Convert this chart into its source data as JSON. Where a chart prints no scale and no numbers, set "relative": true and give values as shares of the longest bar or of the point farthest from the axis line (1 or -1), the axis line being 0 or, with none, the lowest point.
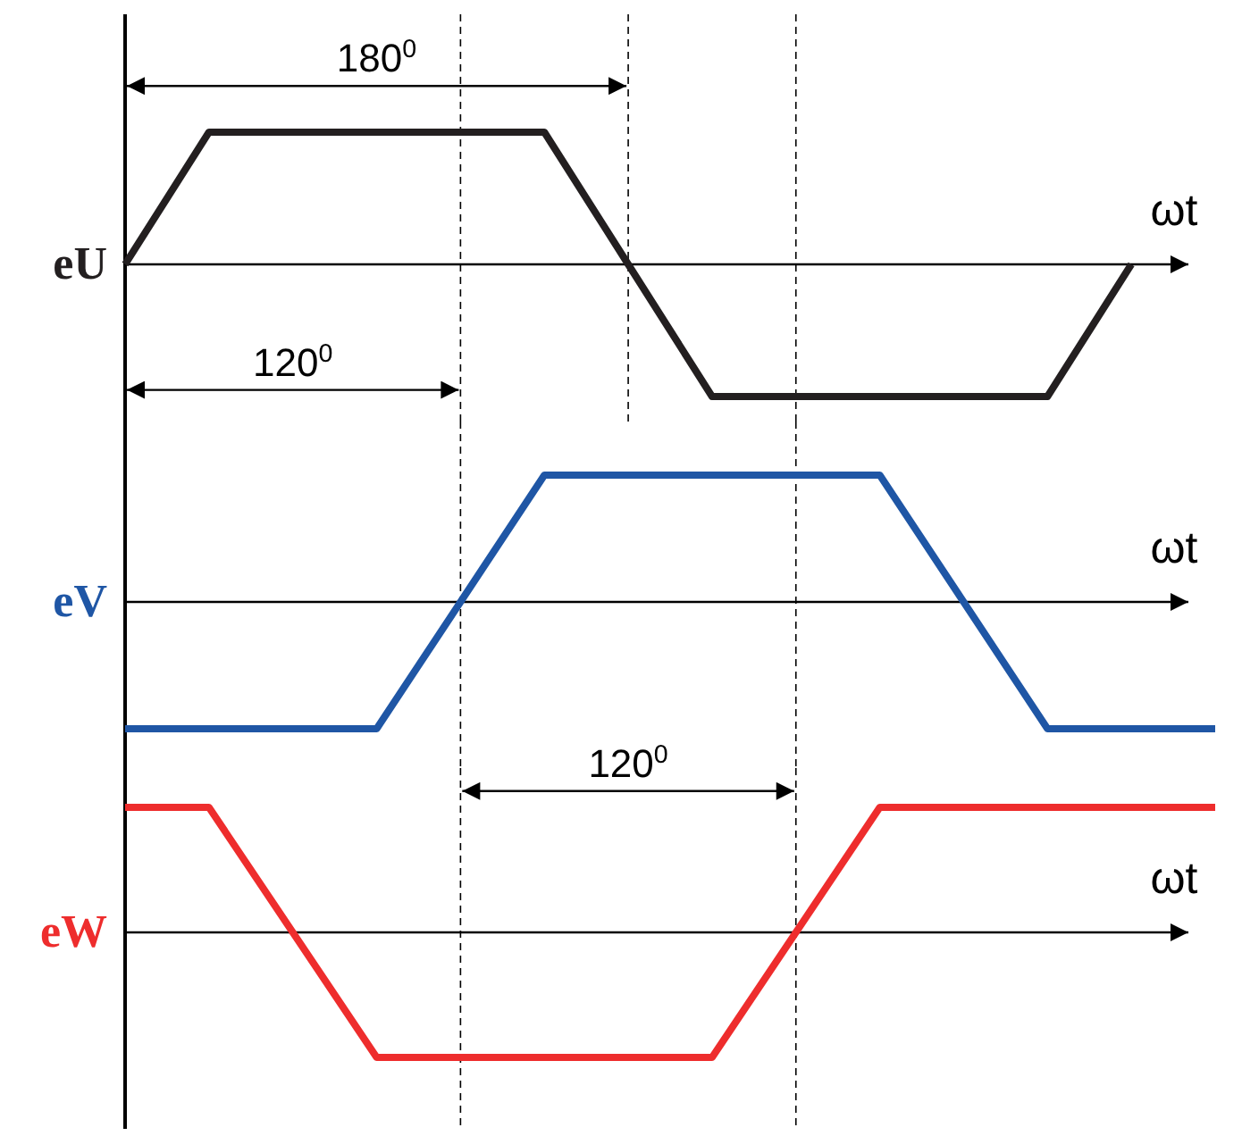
{
  "chart_data": [
    {
      "type": "line",
      "relative": true,
      "xlabel": "ωt",
      "ylabel": "eU",
      "line_style": "solid",
      "grid": "x",
      "annotations": [
        "180$^{0}$",
        "120$^{0}$"
      ],
      "categories": [
        null,
        null,
        null,
        null,
        null,
        null,
        null,
        null,
        null,
        null,
        null,
        null,
        null,
        null
      ],
      "series": [
        {
          "color": "#231f20",
          "values": [
            0,
            1,
            1,
            1,
            1,
            1,
            0,
            -1,
            -1,
            -1,
            -1,
            -1,
            0,
            null
          ]
        }
      ]
    },
    {
      "type": "line",
      "relative": true,
      "xlabel": "ωt",
      "ylabel": "eV",
      "line_style": "solid",
      "grid": "x",
      "categories": [
        null,
        null,
        null,
        null,
        null,
        null,
        null,
        null,
        null,
        null,
        null,
        null,
        null,
        null
      ],
      "series": [
        {
          "color": "#1f56a5",
          "values": [
            -1,
            -1,
            -1,
            -1,
            0,
            1,
            1,
            1,
            1,
            1,
            0,
            -1,
            -1,
            -1
          ]
        }
      ]
    },
    {
      "type": "line",
      "relative": true,
      "xlabel": "ωt",
      "ylabel": "eW",
      "line_style": "solid",
      "grid": "x",
      "annotations": [
        "120$^{0}$"
      ],
      "categories": [
        null,
        null,
        null,
        null,
        null,
        null,
        null,
        null,
        null,
        null,
        null,
        null,
        null,
        null
      ],
      "series": [
        {
          "color": "#ee2d2d",
          "values": [
            1,
            1,
            0,
            -1,
            -1,
            -1,
            -1,
            -1,
            0,
            1,
            1,
            1,
            1,
            1
          ]
        }
      ]
    }
  ]
}
